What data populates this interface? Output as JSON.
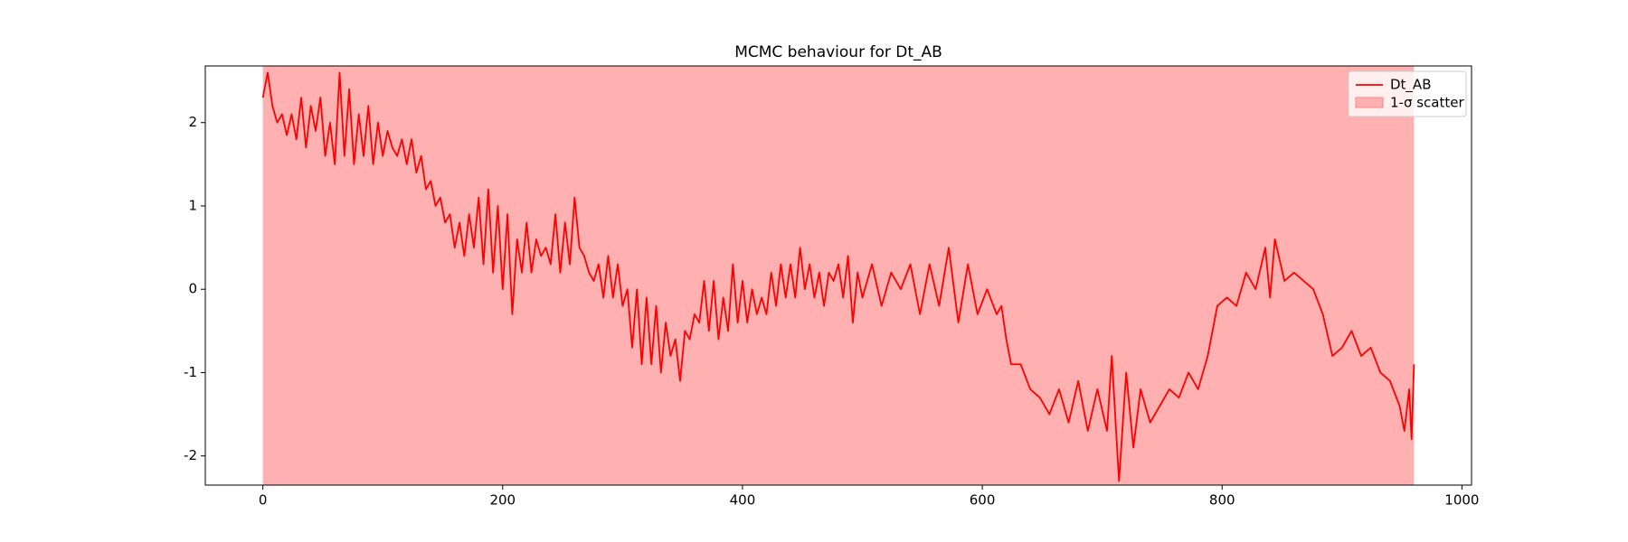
{
  "chart_data": {
    "type": "line",
    "title": "MCMC behaviour for Dt_AB",
    "x": [
      0,
      4,
      8,
      12,
      16,
      20,
      24,
      28,
      32,
      36,
      40,
      44,
      48,
      52,
      56,
      60,
      64,
      68,
      72,
      76,
      80,
      84,
      88,
      92,
      96,
      100,
      104,
      108,
      112,
      116,
      120,
      124,
      128,
      132,
      136,
      140,
      144,
      148,
      152,
      156,
      160,
      164,
      168,
      172,
      176,
      180,
      184,
      188,
      192,
      196,
      200,
      204,
      208,
      212,
      216,
      220,
      224,
      228,
      232,
      236,
      240,
      244,
      248,
      252,
      256,
      260,
      264,
      268,
      272,
      276,
      280,
      284,
      288,
      292,
      296,
      300,
      304,
      308,
      312,
      316,
      320,
      324,
      328,
      332,
      336,
      340,
      344,
      348,
      352,
      356,
      360,
      364,
      368,
      372,
      376,
      380,
      384,
      388,
      392,
      396,
      400,
      404,
      408,
      412,
      416,
      420,
      424,
      428,
      432,
      436,
      440,
      444,
      448,
      452,
      456,
      460,
      464,
      468,
      472,
      476,
      480,
      484,
      488,
      492,
      496,
      500,
      508,
      516,
      524,
      532,
      540,
      548,
      556,
      564,
      572,
      580,
      588,
      596,
      604,
      612,
      616,
      620,
      624,
      632,
      640,
      648,
      656,
      664,
      672,
      680,
      688,
      696,
      704,
      708,
      714,
      720,
      726,
      732,
      740,
      748,
      756,
      764,
      772,
      780,
      788,
      796,
      804,
      812,
      820,
      828,
      836,
      840,
      844,
      852,
      860,
      868,
      876,
      884,
      892,
      900,
      908,
      916,
      924,
      932,
      940,
      948,
      952,
      956,
      958,
      960
    ],
    "series": [
      {
        "name": "Dt_AB",
        "color": "#ff0000",
        "values": [
          2.3,
          2.6,
          2.2,
          2.0,
          2.1,
          1.85,
          2.1,
          1.8,
          2.3,
          1.7,
          2.2,
          1.9,
          2.3,
          1.6,
          2.0,
          1.5,
          2.6,
          1.6,
          2.4,
          1.5,
          2.1,
          1.6,
          2.2,
          1.5,
          2.0,
          1.6,
          1.9,
          1.7,
          1.6,
          1.8,
          1.5,
          1.8,
          1.4,
          1.6,
          1.2,
          1.3,
          1.0,
          1.1,
          0.8,
          0.9,
          0.5,
          0.8,
          0.4,
          0.9,
          0.5,
          1.1,
          0.3,
          1.2,
          0.2,
          1.0,
          0.0,
          0.9,
          -0.3,
          0.6,
          0.2,
          0.8,
          0.2,
          0.6,
          0.4,
          0.5,
          0.3,
          0.9,
          0.2,
          0.8,
          0.3,
          1.1,
          0.5,
          0.4,
          0.2,
          0.1,
          0.3,
          -0.1,
          0.4,
          -0.1,
          0.3,
          -0.2,
          0.0,
          -0.7,
          0.0,
          -0.9,
          -0.1,
          -0.9,
          -0.2,
          -1.0,
          -0.4,
          -0.8,
          -0.6,
          -1.1,
          -0.5,
          -0.6,
          -0.3,
          -0.4,
          0.1,
          -0.5,
          0.1,
          -0.6,
          -0.1,
          -0.5,
          0.3,
          -0.4,
          0.1,
          -0.4,
          0.0,
          -0.3,
          -0.1,
          -0.3,
          0.2,
          -0.2,
          0.3,
          -0.1,
          0.3,
          -0.1,
          0.5,
          0.0,
          0.3,
          -0.1,
          0.2,
          -0.2,
          0.2,
          0.1,
          0.3,
          -0.1,
          0.4,
          -0.4,
          0.2,
          -0.1,
          0.3,
          -0.2,
          0.2,
          0.0,
          0.3,
          -0.3,
          0.3,
          -0.2,
          0.5,
          -0.4,
          0.3,
          -0.3,
          0.0,
          -0.3,
          -0.2,
          -0.6,
          -0.9,
          -0.9,
          -1.2,
          -1.3,
          -1.5,
          -1.2,
          -1.6,
          -1.1,
          -1.7,
          -1.2,
          -1.7,
          -0.8,
          -2.3,
          -1.0,
          -1.9,
          -1.2,
          -1.6,
          -1.4,
          -1.2,
          -1.3,
          -1.0,
          -1.2,
          -0.8,
          -0.2,
          -0.1,
          -0.2,
          0.2,
          0.0,
          0.5,
          -0.1,
          0.6,
          0.1,
          0.2,
          0.1,
          0.0,
          -0.3,
          -0.8,
          -0.7,
          -0.5,
          -0.8,
          -0.7,
          -1.0,
          -1.1,
          -1.4,
          -1.7,
          -1.2,
          -1.8,
          -0.9
        ]
      }
    ],
    "span": {
      "name": "1-σ scatter",
      "x": [
        0,
        960
      ],
      "color": "#ffb0b0"
    },
    "xlim": [
      -48,
      1008
    ],
    "ylim": [
      -2.35,
      2.68
    ],
    "xticks": [
      0,
      200,
      400,
      600,
      800,
      1000
    ],
    "yticks": [
      -2,
      -1,
      0,
      1,
      2
    ],
    "legend": "upper right"
  }
}
